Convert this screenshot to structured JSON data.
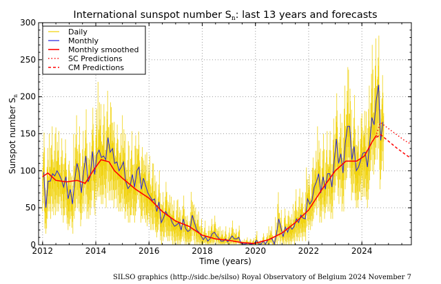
{
  "chart_data": {
    "type": "line",
    "title": "International sunspot number S",
    "title_subscript": "n",
    "title_suffix": ": last 13 years and forecasts",
    "xlabel": "Time (years)",
    "ylabel": "Sunspot number S",
    "ylabel_subscript": "n",
    "xlim": [
      2011.85,
      2025.86
    ],
    "ylim": [
      0,
      300
    ],
    "xticks": [
      2012,
      2014,
      2016,
      2018,
      2020,
      2022,
      2024
    ],
    "yticks": [
      0,
      50,
      100,
      150,
      200,
      250,
      300
    ],
    "xtick_labels": [
      "2012",
      "2014",
      "2016",
      "2018",
      "2020",
      "2022",
      "2024"
    ],
    "ytick_labels": [
      "0",
      "50",
      "100",
      "150",
      "200",
      "250",
      "300"
    ],
    "grid": true,
    "legend_position": "top-left",
    "legend": [
      "Daily",
      "Monthly",
      "Monthly smoothed",
      "SC Predictions",
      "CM Predictions"
    ],
    "colors": {
      "daily": "#f0d000",
      "monthly": "#2222dd",
      "smoothed": "#ff0000",
      "sc": "#ff0000",
      "cm": "#ff0000"
    },
    "monthly_start": 2012.0,
    "monthly": [
      98,
      50,
      86,
      86,
      96,
      93,
      100,
      95,
      88,
      78,
      92,
      62,
      75,
      55,
      88,
      110,
      98,
      70,
      98,
      120,
      85,
      92,
      126,
      95,
      122,
      128,
      118,
      120,
      115,
      145,
      125,
      130,
      110,
      112,
      100,
      105,
      112,
      85,
      76,
      80,
      95,
      78,
      100,
      105,
      75,
      90,
      80,
      70,
      65,
      60,
      62,
      45,
      58,
      30,
      36,
      45,
      40,
      38,
      30,
      25,
      27,
      30,
      20,
      35,
      22,
      18,
      20,
      40,
      30,
      20,
      17,
      12,
      7,
      11,
      5,
      8,
      15,
      17,
      12,
      9,
      5,
      5,
      8,
      4,
      8,
      12,
      8,
      8,
      10,
      2,
      1,
      1,
      2,
      1,
      1,
      2,
      6,
      1,
      1,
      5,
      1,
      6,
      8,
      8,
      1,
      15,
      35,
      23,
      11,
      24,
      17,
      25,
      21,
      25,
      35,
      30,
      40,
      36,
      35,
      62,
      55,
      60,
      78,
      85,
      96,
      70,
      92,
      75,
      96,
      96,
      78,
      113,
      143,
      110,
      123,
      97,
      137,
      160,
      160,
      115,
      133,
      100,
      105,
      115,
      124,
      125,
      105,
      136,
      172,
      162,
      196,
      216,
      141,
      166
    ],
    "daily_max": [
      165,
      110,
      150,
      150,
      160,
      150,
      165,
      160,
      150,
      140,
      155,
      120,
      130,
      110,
      150,
      175,
      160,
      130,
      160,
      190,
      150,
      150,
      200,
      160,
      210,
      220,
      190,
      190,
      180,
      215,
      200,
      200,
      180,
      175,
      160,
      170,
      175,
      150,
      140,
      140,
      160,
      140,
      160,
      165,
      130,
      150,
      140,
      125,
      120,
      110,
      115,
      90,
      105,
      80,
      80,
      95,
      85,
      80,
      65,
      60,
      60,
      65,
      50,
      70,
      55,
      45,
      50,
      85,
      65,
      50,
      45,
      35,
      25,
      35,
      20,
      30,
      40,
      45,
      35,
      30,
      25,
      20,
      25,
      15,
      25,
      35,
      25,
      25,
      30,
      10,
      8,
      8,
      10,
      8,
      8,
      10,
      20,
      8,
      8,
      18,
      8,
      20,
      25,
      25,
      10,
      40,
      75,
      50,
      30,
      55,
      45,
      55,
      50,
      55,
      75,
      65,
      80,
      75,
      75,
      115,
      105,
      115,
      135,
      145,
      160,
      130,
      150,
      135,
      160,
      160,
      140,
      185,
      220,
      180,
      200,
      165,
      215,
      240,
      245,
      190,
      210,
      170,
      175,
      185,
      200,
      205,
      180,
      215,
      270,
      245,
      288,
      290,
      225,
      245
    ],
    "daily_min": [
      45,
      15,
      35,
      35,
      45,
      40,
      45,
      45,
      40,
      30,
      40,
      20,
      25,
      15,
      35,
      50,
      45,
      25,
      45,
      55,
      35,
      40,
      60,
      40,
      60,
      65,
      55,
      55,
      50,
      70,
      60,
      60,
      50,
      50,
      45,
      45,
      50,
      35,
      30,
      30,
      40,
      30,
      45,
      50,
      30,
      35,
      30,
      25,
      20,
      20,
      20,
      10,
      20,
      0,
      5,
      10,
      5,
      5,
      0,
      0,
      0,
      0,
      0,
      5,
      0,
      0,
      0,
      5,
      0,
      0,
      0,
      0,
      0,
      0,
      0,
      0,
      0,
      0,
      0,
      0,
      0,
      0,
      0,
      0,
      0,
      0,
      0,
      0,
      0,
      0,
      0,
      0,
      0,
      0,
      0,
      0,
      0,
      0,
      0,
      0,
      0,
      0,
      0,
      0,
      0,
      0,
      5,
      0,
      0,
      0,
      0,
      0,
      0,
      0,
      5,
      5,
      10,
      5,
      5,
      25,
      20,
      25,
      35,
      40,
      50,
      30,
      45,
      35,
      45,
      45,
      35,
      60,
      80,
      55,
      65,
      45,
      75,
      90,
      90,
      60,
      70,
      50,
      50,
      60,
      65,
      65,
      50,
      75,
      100,
      95,
      115,
      130,
      75,
      100
    ],
    "smoothed": [
      [
        2012.0,
        92
      ],
      [
        2012.2,
        97
      ],
      [
        2012.5,
        87
      ],
      [
        2012.9,
        85
      ],
      [
        2013.3,
        87
      ],
      [
        2013.6,
        83
      ],
      [
        2013.9,
        100
      ],
      [
        2014.2,
        115
      ],
      [
        2014.5,
        112
      ],
      [
        2014.7,
        100
      ],
      [
        2015.0,
        90
      ],
      [
        2015.5,
        75
      ],
      [
        2016.0,
        63
      ],
      [
        2016.5,
        45
      ],
      [
        2017.0,
        32
      ],
      [
        2017.5,
        25
      ],
      [
        2018.0,
        13
      ],
      [
        2018.5,
        8
      ],
      [
        2019.0,
        6
      ],
      [
        2019.5,
        3
      ],
      [
        2019.95,
        1.8
      ],
      [
        2020.5,
        7
      ],
      [
        2021.0,
        16
      ],
      [
        2021.5,
        30
      ],
      [
        2022.0,
        47
      ],
      [
        2022.5,
        75
      ],
      [
        2023.0,
        100
      ],
      [
        2023.4,
        113
      ],
      [
        2023.8,
        113
      ],
      [
        2024.1,
        120
      ],
      [
        2024.4,
        140
      ],
      [
        2024.55,
        148
      ]
    ],
    "sc_predictions": [
      [
        2024.55,
        150
      ],
      [
        2024.7,
        165
      ],
      [
        2025.0,
        157
      ],
      [
        2025.3,
        149
      ],
      [
        2025.6,
        141
      ],
      [
        2025.8,
        137
      ]
    ],
    "cm_predictions": [
      [
        2024.55,
        145
      ],
      [
        2024.7,
        149
      ],
      [
        2025.0,
        140
      ],
      [
        2025.3,
        131
      ],
      [
        2025.6,
        123
      ],
      [
        2025.8,
        118
      ]
    ]
  },
  "footer": "SILSO graphics (http://sidc.be/silso)  Royal Observatory of Belgium  2024 November 7"
}
